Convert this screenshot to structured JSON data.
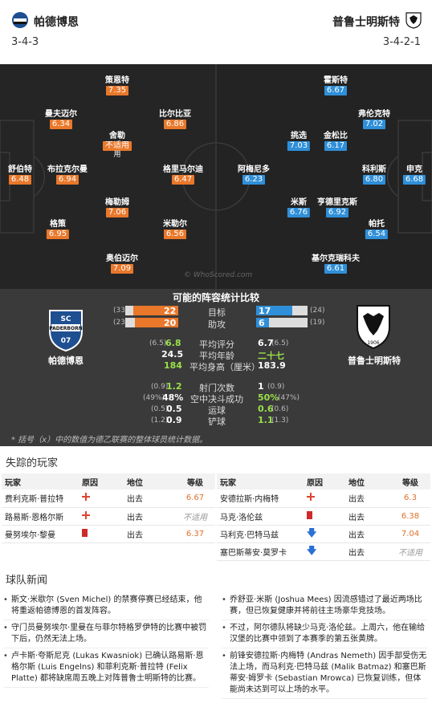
{
  "header": {
    "home_name": "帕德博恩",
    "home_formation": "3-4-3",
    "away_name": "普鲁士明斯特",
    "away_formation": "3-4-2-1"
  },
  "home_players": [
    {
      "name": "策恩特",
      "rating": "7.35"
    },
    {
      "name": "曼夫迈尔",
      "rating": "6.34"
    },
    {
      "name": "比尔比亚",
      "rating": "6.86"
    },
    {
      "name": "舍勒",
      "rating": "不适用",
      "sub": "用"
    },
    {
      "name": "舒伯特",
      "rating": "6.48"
    },
    {
      "name": "布拉克尔曼",
      "rating": "6.94"
    },
    {
      "name": "格里马尔迪",
      "rating": "6.47"
    },
    {
      "name": "梅勒姆",
      "rating": "7.06"
    },
    {
      "name": "格策",
      "rating": "6.95"
    },
    {
      "name": "米勒尔",
      "rating": "6.56"
    },
    {
      "name": "奥伯迈尔",
      "rating": "7.09"
    }
  ],
  "away_players": [
    {
      "name": "霍斯特",
      "rating": "6.67"
    },
    {
      "name": "弗伦克特",
      "rating": "7.02"
    },
    {
      "name": "挑选",
      "rating": "7.03"
    },
    {
      "name": "金松比",
      "rating": "6.17"
    },
    {
      "name": "阿梅尼多",
      "rating": "6.23"
    },
    {
      "name": "科利斯",
      "rating": "6.80"
    },
    {
      "name": "申克",
      "rating": "6.68"
    },
    {
      "name": "米斯",
      "rating": "6.76"
    },
    {
      "name": "亨德里克斯",
      "rating": "6.92"
    },
    {
      "name": "帕托",
      "rating": "6.54"
    },
    {
      "name": "基尔克瑞科夫",
      "rating": "6.61"
    }
  ],
  "watermark": "© WhoScored.com",
  "stats": {
    "title": "可能的阵容统计比较",
    "home_team": "帕德博恩",
    "away_team": "普鲁士明斯特",
    "home_badge_text": "SC PADERBORN 07",
    "away_badge_text": "1906",
    "goals": {
      "label": "目标",
      "home_prev": "(33)",
      "home": "22",
      "away": "17",
      "away_prev": "(24)"
    },
    "assists": {
      "label": "助攻",
      "home_prev": "(23)",
      "home": "20",
      "away": "6",
      "away_prev": "(19)"
    },
    "rows": [
      {
        "label": "平均评分",
        "home_prev": "(6.5)",
        "home": "6.8",
        "away": "6.7",
        "away_prev": "(6.5)",
        "home_green": true,
        "away_green": false
      },
      {
        "label": "平均年龄",
        "home_prev": "",
        "home": "24.5",
        "away": "二十七",
        "away_prev": "",
        "home_green": false,
        "away_green": true
      },
      {
        "label": "平均身高（厘米）",
        "home_prev": "",
        "home": "184",
        "away": "183.9",
        "away_prev": "",
        "home_green": true,
        "away_green": false
      }
    ],
    "rows2": [
      {
        "label": "射门次数",
        "home_prev": "(0.9)",
        "home": "1.2",
        "away": "1",
        "away_prev": "(0.9)",
        "home_green": true,
        "away_green": false
      },
      {
        "label": "空中决斗成功",
        "home_prev": "(49%)",
        "home": "48%",
        "away": "50%",
        "away_prev": "(47%)",
        "home_green": false,
        "away_green": true
      },
      {
        "label": "运球",
        "home_prev": "(0.5)",
        "home": "0.5",
        "away": "0.6",
        "away_prev": "(0.6)",
        "home_green": false,
        "away_green": true
      },
      {
        "label": "铲球",
        "home_prev": "(1.2)",
        "home": "0.9",
        "away": "1.1",
        "away_prev": "(1.3)",
        "home_green": false,
        "away_green": true
      }
    ],
    "note": "* 括号（x）中的数值为德乙联赛的整体球员统计数据。"
  },
  "missing": {
    "title": "失踪的玩家",
    "headers": [
      "玩家",
      "原因",
      "地位",
      "等级"
    ],
    "home": [
      {
        "player": "费利克斯·普拉特",
        "reason": "injury",
        "status": "出去",
        "rating": "6.67"
      },
      {
        "player": "路易斯·恩格尔斯",
        "reason": "injury",
        "status": "出去",
        "rating": "不适用"
      },
      {
        "player": "曼努埃尔·黎曼",
        "reason": "red",
        "status": "出去",
        "rating": "6.37"
      }
    ],
    "away": [
      {
        "player": "安德拉斯·内梅特",
        "reason": "injury",
        "status": "出去",
        "rating": "6.3"
      },
      {
        "player": "马克·洛伦兹",
        "reason": "red",
        "status": "出去",
        "rating": "6.38"
      },
      {
        "player": "马利克·巴特马兹",
        "reason": "down",
        "status": "出去",
        "rating": "7.04"
      },
      {
        "player": "塞巴斯蒂安·莫罗卡",
        "reason": "down",
        "status": "出去",
        "rating": "不适用"
      }
    ]
  },
  "news": {
    "title": "球队新闻",
    "left": [
      "斯文·米歇尔 (Sven Michel) 的禁赛停赛已经结束，他将重返帕德博恩的首发阵容。",
      "守门员曼努埃尔·里曼在与菲尔特格罗伊特的比赛中被罚下后，仍然无法上场。",
      "卢卡斯·夸斯尼克 (Lukas Kwasniok) 已确认路易斯·恩格尔斯 (Luis Engelns) 和菲利克斯·普拉特 (Felix Platte) 都将缺席周五晚上对阵普鲁士明斯特的比赛。"
    ],
    "right": [
      "乔舒亚·米斯 (Joshua Mees) 因流感错过了最近两场比赛，但已恢复健康并将前往主场豪华竞技场。",
      "不过，阿尔德队将缺少马克·洛伦兹。上周六，他在输给汉堡的比赛中领到了本赛季的第五张黄牌。",
      "前锋安德拉斯·内梅特 (Andras Nemeth) 因手部受伤无法上场，而马利克·巴特马兹 (Malik Batmaz) 和塞巴斯蒂安·姆罗卡 (Sebastian Mrowca) 已恢复训练，但体能尚未达到可以上场的水平。"
    ]
  },
  "colors": {
    "home": "#e9782b",
    "away": "#2f8fd8",
    "positive": "#9be04a"
  }
}
